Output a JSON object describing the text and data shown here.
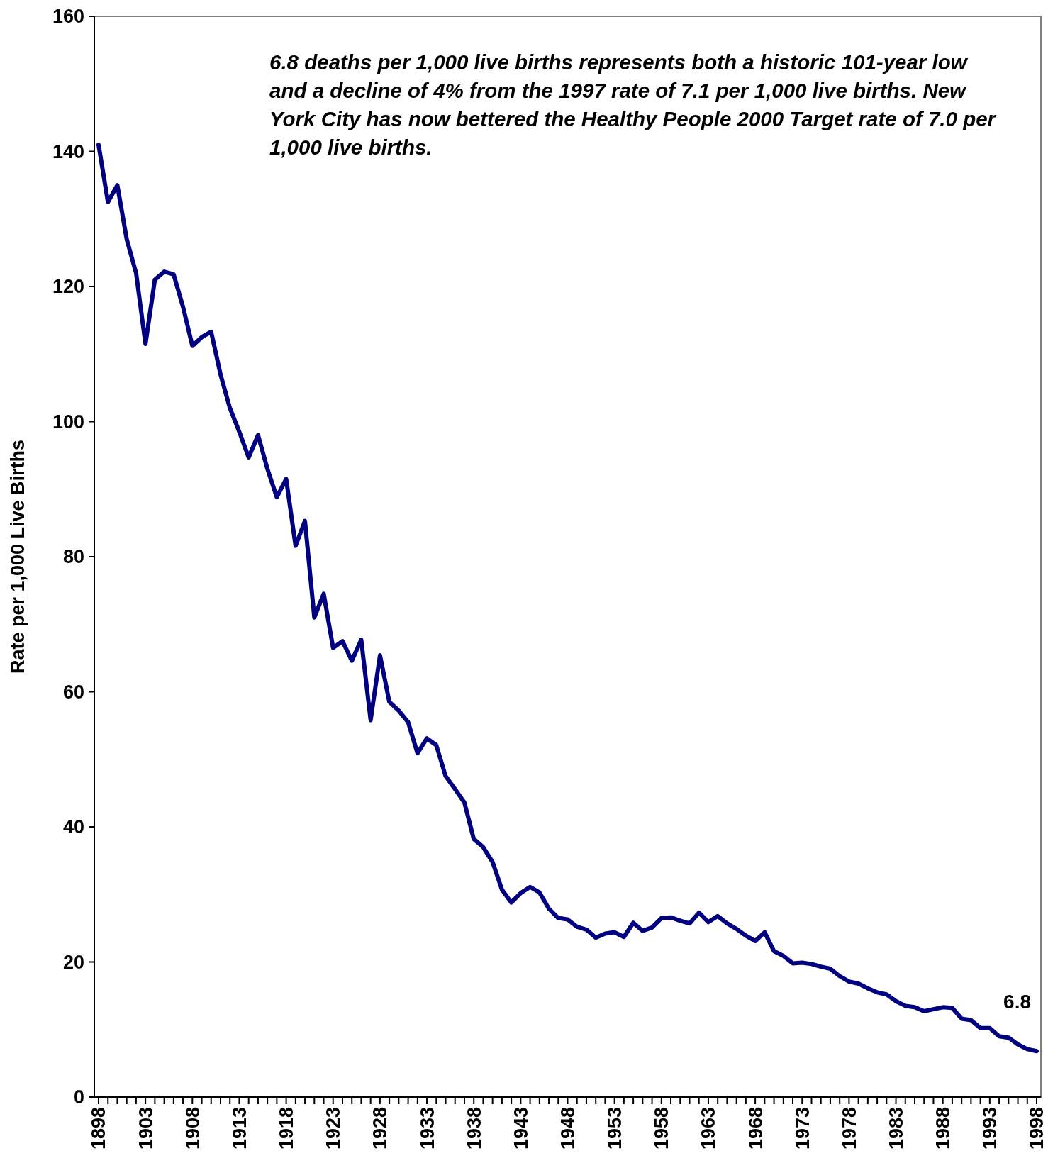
{
  "chart_data": {
    "type": "line",
    "ylabel": "Rate per 1,000 Live Births",
    "categories": [
      "1898",
      null,
      null,
      null,
      null,
      "1903",
      null,
      null,
      null,
      null,
      "1908",
      null,
      null,
      null,
      null,
      "1913",
      null,
      null,
      null,
      null,
      "1918",
      null,
      null,
      null,
      null,
      "1923",
      null,
      null,
      null,
      null,
      "1928",
      null,
      null,
      null,
      null,
      "1933",
      null,
      null,
      null,
      null,
      "1938",
      null,
      null,
      null,
      null,
      "1943",
      null,
      null,
      null,
      null,
      "1948",
      null,
      null,
      null,
      null,
      "1953",
      null,
      null,
      null,
      null,
      "1958",
      null,
      null,
      null,
      null,
      "1963",
      null,
      null,
      null,
      null,
      "1968",
      null,
      null,
      null,
      null,
      "1973",
      null,
      null,
      null,
      null,
      "1978",
      null,
      null,
      null,
      null,
      "1983",
      null,
      null,
      null,
      null,
      "1988",
      null,
      null,
      null,
      null,
      "1993",
      null,
      null,
      null,
      null,
      "1998"
    ],
    "series": [
      {
        "color": "#000080",
        "values": [
          141,
          132.5,
          135,
          127,
          122,
          111.5,
          121,
          122.2,
          121.8,
          117,
          111.2,
          112.5,
          113.3,
          107,
          102,
          98.5,
          94.7,
          98,
          93,
          88.8,
          91.5,
          81.6,
          85.3,
          71,
          74.5,
          66.5,
          67.5,
          64.6,
          67.7,
          55.8,
          65.4,
          58.5,
          57.2,
          55.5,
          50.9,
          53.1,
          52.1,
          47.5,
          45.6,
          43.6,
          38.2,
          37,
          34.8,
          30.7,
          28.8,
          30.2,
          31.1,
          30.3,
          27.9,
          26.5,
          26.3,
          25.2,
          24.8,
          23.6,
          24.2,
          24.4,
          23.7,
          25.8,
          24.6,
          25.1,
          26.5,
          26.6,
          26.1,
          25.7,
          27.3,
          25.9,
          26.8,
          25.7,
          24.9,
          23.9,
          23.1,
          24.4,
          21.6,
          20.9,
          19.8,
          19.9,
          19.7,
          19.3,
          19.0,
          17.9,
          17.1,
          16.8,
          16.1,
          15.5,
          15.2,
          14.2,
          13.5,
          13.3,
          12.7,
          13.0,
          13.3,
          13.2,
          11.6,
          11.4,
          10.2,
          10.2,
          9.0,
          8.8,
          7.8,
          7.1,
          6.8
        ]
      }
    ],
    "ylim": [
      0,
      160
    ],
    "yticks": [
      0,
      20,
      40,
      60,
      80,
      100,
      120,
      140,
      160
    ],
    "marker": "none",
    "line_style": "solid",
    "annotations": [
      "6.8 deaths per 1,000 live births represents both a historic 101-year low and a decline of 4% from the 1997 rate of 7.1 per 1,000 live births. New York City has now bettered the Healthy People 2000 Target rate of 7.0 per 1,000 live births.",
      {
        "text": "6.8",
        "x": "1998",
        "y": 6.8
      }
    ]
  }
}
